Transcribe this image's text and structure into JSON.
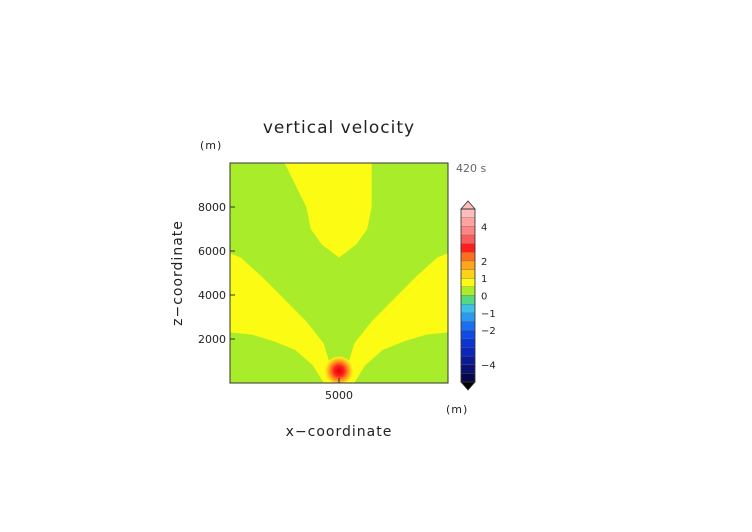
{
  "chart_data": {
    "type": "heatmap",
    "title": "vertical velocity",
    "xlabel": "x−coordinate",
    "ylabel": "z−coordinate",
    "x_unit": "(m)",
    "y_unit": "(m)",
    "time_label": "420 s",
    "xlim": [
      0,
      10000
    ],
    "ylim": [
      0,
      10000
    ],
    "x_ticks": [
      5000
    ],
    "x_tick_labels": [
      "5000"
    ],
    "y_ticks": [
      2000,
      4000,
      6000,
      8000
    ],
    "y_tick_labels": [
      "2000",
      "4000",
      "6000",
      "8000"
    ],
    "colorbar": {
      "min": -5,
      "max": 5,
      "tick_values": [
        4,
        2,
        1,
        0,
        -1,
        -2,
        -4
      ],
      "tick_labels": [
        "4",
        "2",
        "1",
        "0",
        "−1",
        "−2",
        "−4"
      ],
      "colors": [
        {
          "from": -5.0,
          "to": -4.5,
          "color": "#06064a"
        },
        {
          "from": -4.5,
          "to": -4.0,
          "color": "#0a1170"
        },
        {
          "from": -4.0,
          "to": -3.5,
          "color": "#0b1a96"
        },
        {
          "from": -3.5,
          "to": -3.0,
          "color": "#0b26b8"
        },
        {
          "from": -3.0,
          "to": -2.5,
          "color": "#0a34d4"
        },
        {
          "from": -2.5,
          "to": -2.0,
          "color": "#0d4ae6"
        },
        {
          "from": -2.0,
          "to": -1.5,
          "color": "#1a6ef0"
        },
        {
          "from": -1.5,
          "to": -1.0,
          "color": "#2b98f2"
        },
        {
          "from": -1.0,
          "to": -0.5,
          "color": "#3bc2e8"
        },
        {
          "from": -0.5,
          "to": 0.0,
          "color": "#56d882"
        },
        {
          "from": 0.0,
          "to": 0.5,
          "color": "#a8ec2a"
        },
        {
          "from": 0.5,
          "to": 1.0,
          "color": "#fbfb14"
        },
        {
          "from": 1.0,
          "to": 1.5,
          "color": "#ffd21a"
        },
        {
          "from": 1.5,
          "to": 2.0,
          "color": "#ffa51c"
        },
        {
          "from": 2.0,
          "to": 2.5,
          "color": "#ff6e1c"
        },
        {
          "from": 2.5,
          "to": 3.0,
          "color": "#ff1e1e"
        },
        {
          "from": 3.0,
          "to": 3.5,
          "color": "#ff5a5a"
        },
        {
          "from": 3.5,
          "to": 4.0,
          "color": "#ff8484"
        },
        {
          "from": 4.0,
          "to": 4.5,
          "color": "#ffa2a2"
        },
        {
          "from": 4.5,
          "to": 5.0,
          "color": "#ffbcbc"
        }
      ]
    },
    "field_regions": [
      {
        "level": "0 to 0.5",
        "color": "#a8ec2a",
        "description": "background"
      },
      {
        "level": "0.5 to 1",
        "color": "#fbfb14",
        "description": "upper central plume",
        "outline": [
          [
            2500,
            10000
          ],
          [
            6500,
            10000
          ],
          [
            6500,
            8000
          ],
          [
            6300,
            7000
          ],
          [
            5800,
            6300
          ],
          [
            5000,
            5700
          ],
          [
            4200,
            6300
          ],
          [
            3700,
            7000
          ],
          [
            3500,
            8000
          ],
          [
            2500,
            10000
          ]
        ]
      },
      {
        "level": "0.5 to 1",
        "color": "#fbfb14",
        "description": "left diagonal band",
        "outline": [
          [
            0,
            5900
          ],
          [
            500,
            5700
          ],
          [
            1500,
            4800
          ],
          [
            2500,
            3800
          ],
          [
            3500,
            2800
          ],
          [
            4300,
            1800
          ],
          [
            4600,
            800
          ],
          [
            4800,
            0
          ],
          [
            4300,
            0
          ],
          [
            3800,
            800
          ],
          [
            3000,
            1500
          ],
          [
            2000,
            1900
          ],
          [
            1000,
            2200
          ],
          [
            0,
            2300
          ]
        ]
      },
      {
        "level": "0.5 to 1",
        "color": "#fbfb14",
        "description": "right diagonal band",
        "outline": [
          [
            10000,
            5900
          ],
          [
            9500,
            5700
          ],
          [
            8500,
            4800
          ],
          [
            7500,
            3800
          ],
          [
            6500,
            2800
          ],
          [
            5700,
            1800
          ],
          [
            5400,
            800
          ],
          [
            5200,
            0
          ],
          [
            5700,
            0
          ],
          [
            6200,
            800
          ],
          [
            7000,
            1500
          ],
          [
            8000,
            1900
          ],
          [
            9000,
            2200
          ],
          [
            10000,
            2300
          ]
        ]
      },
      {
        "level": "1 to 4.5",
        "color": "#ff1e1e",
        "description": "thermal bubble core",
        "center": [
          5000,
          550
        ],
        "radius": 650
      }
    ]
  }
}
